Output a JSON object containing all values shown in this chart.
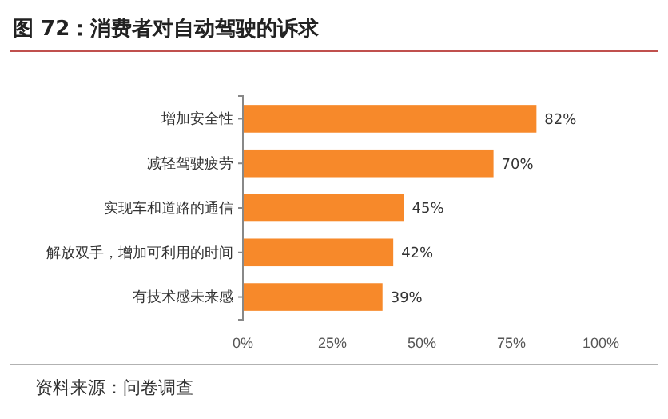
{
  "chart_data": {
    "type": "bar",
    "orientation": "horizontal",
    "title": "图 72：消费者对自动驾驶的诉求",
    "categories": [
      "增加安全性",
      "减轻驾驶疲劳",
      "实现车和道路的通信",
      "解放双手，增加可利用的时间",
      "有技术感未来感"
    ],
    "values": [
      82,
      70,
      45,
      42,
      39
    ],
    "color": "#f7892a",
    "xlim": [
      0,
      100
    ],
    "xticks": [
      {
        "value": 0,
        "label": "0%"
      },
      {
        "value": 25,
        "label": "25%"
      },
      {
        "value": 50,
        "label": "50%"
      },
      {
        "value": 75,
        "label": "75%"
      },
      {
        "value": 100,
        "label": "100%"
      }
    ],
    "value_labels": [
      "82%",
      "70%",
      "45%",
      "42%",
      "39%"
    ],
    "grid": false,
    "annotations": [
      "资料来源：问卷调查"
    ]
  }
}
